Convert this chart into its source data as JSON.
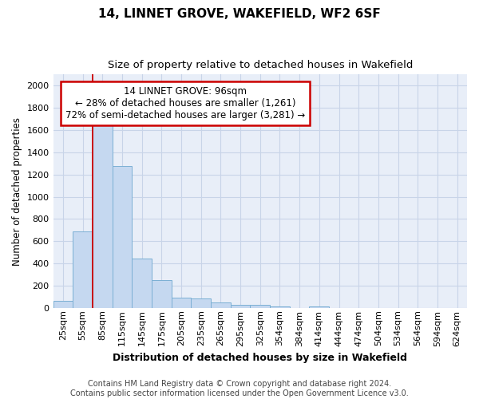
{
  "title1": "14, LINNET GROVE, WAKEFIELD, WF2 6SF",
  "title2": "Size of property relative to detached houses in Wakefield",
  "xlabel": "Distribution of detached houses by size in Wakefield",
  "ylabel": "Number of detached properties",
  "categories": [
    "25sqm",
    "55sqm",
    "85sqm",
    "115sqm",
    "145sqm",
    "175sqm",
    "205sqm",
    "235sqm",
    "265sqm",
    "295sqm",
    "325sqm",
    "354sqm",
    "384sqm",
    "414sqm",
    "444sqm",
    "474sqm",
    "504sqm",
    "534sqm",
    "564sqm",
    "594sqm",
    "624sqm"
  ],
  "values": [
    65,
    690,
    1640,
    1280,
    440,
    250,
    95,
    85,
    50,
    30,
    30,
    15,
    0,
    15,
    0,
    0,
    0,
    0,
    0,
    0,
    0
  ],
  "bar_color": "#c5d8f0",
  "bar_edge_color": "#7bafd4",
  "grid_color": "#c8d4e8",
  "background_color": "#e8eef8",
  "annotation_box_color": "#ffffff",
  "annotation_border_color": "#cc0000",
  "red_line_x": 2.0,
  "annotation_text_line1": "14 LINNET GROVE: 96sqm",
  "annotation_text_line2": "← 28% of detached houses are smaller (1,261)",
  "annotation_text_line3": "72% of semi-detached houses are larger (3,281) →",
  "footer_line1": "Contains HM Land Registry data © Crown copyright and database right 2024.",
  "footer_line2": "Contains public sector information licensed under the Open Government Licence v3.0.",
  "ylim": [
    0,
    2100
  ],
  "yticks": [
    0,
    200,
    400,
    600,
    800,
    1000,
    1200,
    1400,
    1600,
    1800,
    2000
  ],
  "title1_fontsize": 11,
  "title2_fontsize": 9.5,
  "xlabel_fontsize": 9,
  "ylabel_fontsize": 8.5,
  "tick_fontsize": 8,
  "footer_fontsize": 7,
  "annotation_fontsize": 8.5
}
